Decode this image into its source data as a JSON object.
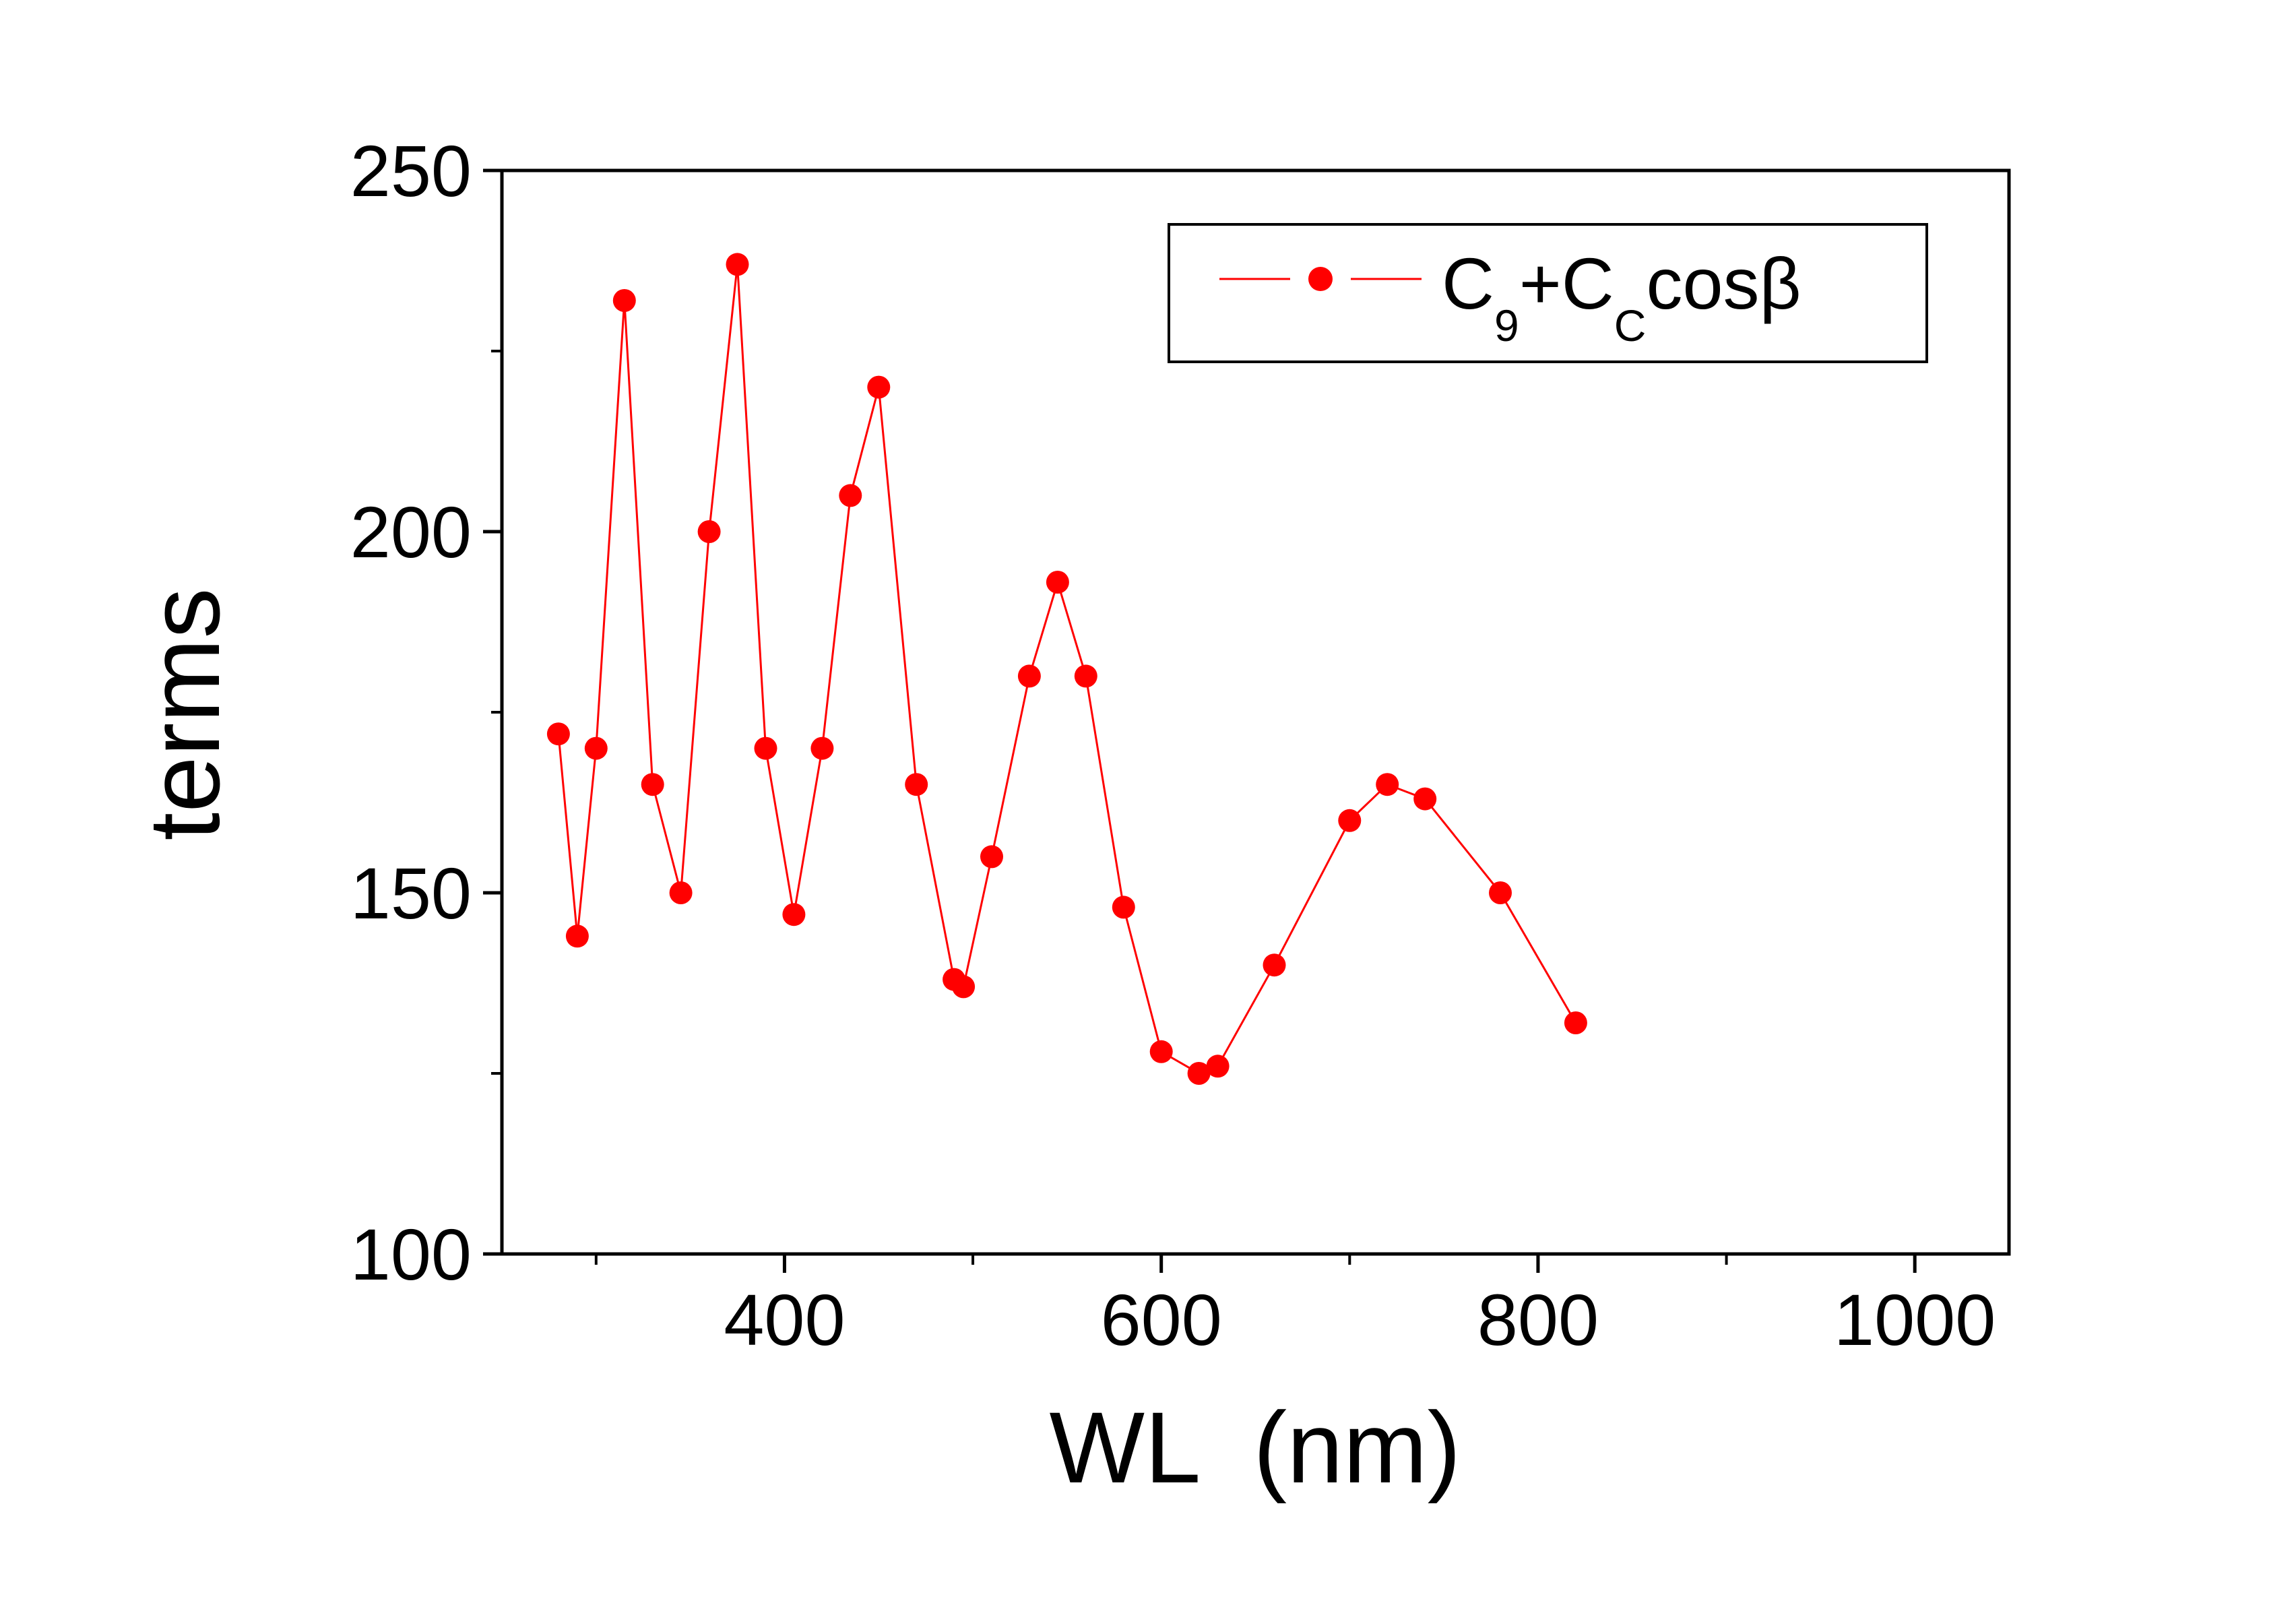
{
  "chart_data": {
    "type": "line",
    "title": "",
    "xlabel": "WL  (nm)",
    "ylabel": "terms",
    "xlim": [
      250,
      1050
    ],
    "ylim": [
      100,
      250
    ],
    "x_ticks": [
      400,
      600,
      800,
      1000
    ],
    "x_tick_labels": [
      "400",
      "600",
      "800",
      "1000"
    ],
    "y_ticks": [
      100,
      150,
      200,
      250
    ],
    "y_tick_labels": [
      "100",
      "150",
      "200",
      "250"
    ],
    "grid": false,
    "legend_position": "top-right",
    "legend": {
      "base": "C",
      "sub1": "9",
      "plus": "+C",
      "sub2": "C",
      "tail": "cosβ"
    },
    "series": [
      {
        "name": "C9+CCcosβ",
        "color": "#ff0000",
        "marker": "circle",
        "x": [
          280,
          290,
          300,
          315,
          330,
          345,
          360,
          375,
          390,
          405,
          420,
          435,
          450,
          470,
          490,
          495,
          510,
          530,
          545,
          560,
          580,
          600,
          620,
          630,
          660,
          700,
          720,
          740,
          780,
          820
        ],
        "y": [
          172,
          144,
          170,
          232,
          165,
          150,
          200,
          237,
          170,
          147,
          170,
          205,
          220,
          165,
          138,
          137,
          155,
          180,
          193,
          180,
          148,
          128,
          125,
          126,
          140,
          160,
          165,
          163,
          150,
          132
        ]
      }
    ]
  }
}
